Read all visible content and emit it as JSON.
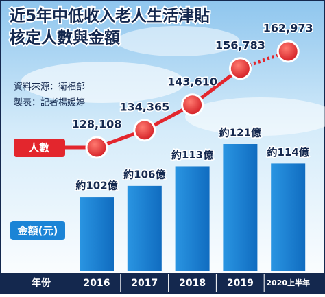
{
  "chart_data": {
    "type": "combo",
    "title": "近5年中低收入老人生活津貼",
    "subtitle": "核定人數與金額",
    "source": "資料來源：衛福部",
    "credit": "製表：記者楊媛婷",
    "x_label": "年份",
    "categories": [
      "2016",
      "2017",
      "2018",
      "2019",
      "2020上半年"
    ],
    "series": [
      {
        "name": "人數",
        "type": "line",
        "color": "#e3262d",
        "values": [
          128108,
          134365,
          143610,
          156783,
          162973
        ],
        "value_labels": [
          "128,108",
          "134,365",
          "143,610",
          "156,783",
          "162,973"
        ]
      },
      {
        "name": "金額(元)",
        "type": "bar",
        "color": "#1b84d6",
        "values": [
          102,
          106,
          113,
          121,
          114
        ],
        "value_labels": [
          "約102億",
          "約106億",
          "約113億",
          "約121億",
          "約114億"
        ]
      }
    ]
  }
}
